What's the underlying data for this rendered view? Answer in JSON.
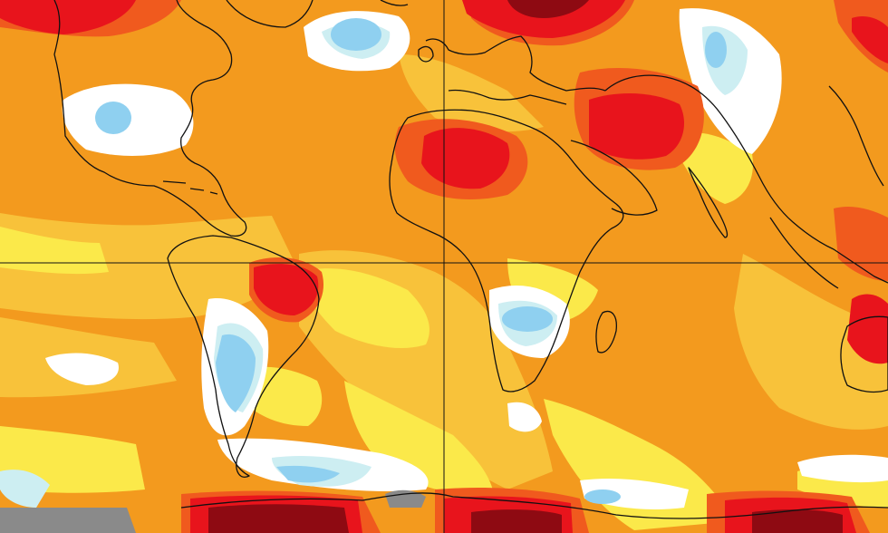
{
  "map": {
    "projection": "equirectangular",
    "palette": {
      "dark_red": "#8e0a12",
      "red": "#e8141c",
      "orange_red": "#f05a1e",
      "orange": "#f39a1e",
      "light_orange": "#f8c23a",
      "yellow": "#fbe94a",
      "pale_yellow": "#fdf7b0",
      "white": "#ffffff",
      "pale_cyan": "#cdeef2",
      "light_blue": "#8fd0f0",
      "blue": "#56a8e8",
      "gray_no_data": "#8a8a8a",
      "coastline": "#111111"
    },
    "gridlines": [
      "equator",
      "prime-meridian"
    ]
  }
}
